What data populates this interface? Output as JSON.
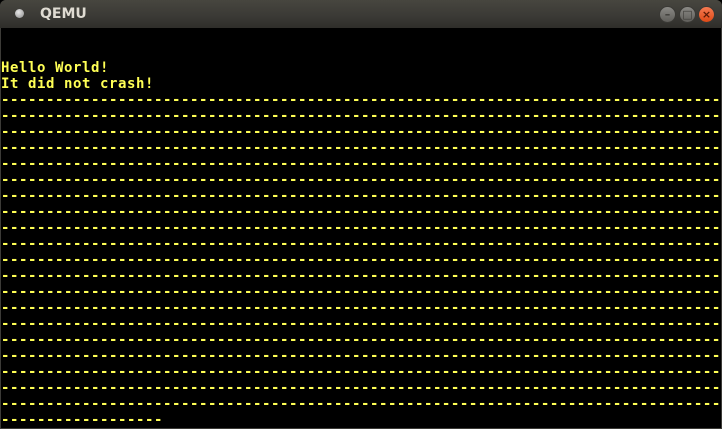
{
  "window": {
    "title": "QEMU",
    "buttons": {
      "minimize": "–",
      "maximize": "□",
      "close": "×"
    },
    "icon": "qemu-app-icon"
  },
  "screen": {
    "text_color": "#ffff55",
    "background": "#000000",
    "lines": [
      "",
      "",
      "Hello World!",
      "It did not crash!",
      "--------------------------------------------------------------------------------",
      "--------------------------------------------------------------------------------",
      "--------------------------------------------------------------------------------",
      "--------------------------------------------------------------------------------",
      "--------------------------------------------------------------------------------",
      "--------------------------------------------------------------------------------",
      "--------------------------------------------------------------------------------",
      "--------------------------------------------------------------------------------",
      "--------------------------------------------------------------------------------",
      "--------------------------------------------------------------------------------",
      "--------------------------------------------------------------------------------",
      "--------------------------------------------------------------------------------",
      "--------------------------------------------------------------------------------",
      "--------------------------------------------------------------------------------",
      "--------------------------------------------------------------------------------",
      "--------------------------------------------------------------------------------",
      "--------------------------------------------------------------------------------",
      "--------------------------------------------------------------------------------",
      "--------------------------------------------------------------------------------",
      "--------------------------------------------------------------------------------",
      "------------------"
    ]
  }
}
